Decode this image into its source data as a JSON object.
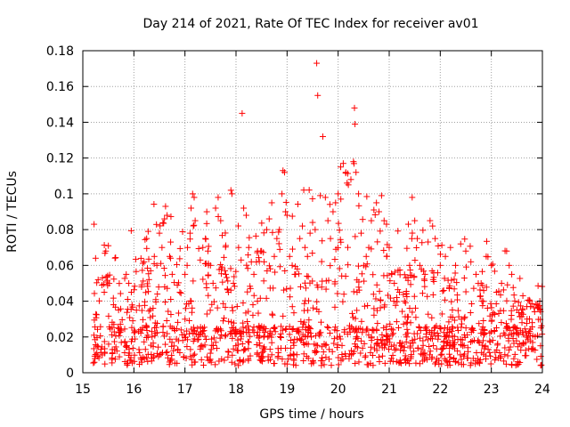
{
  "chart_data": {
    "type": "scatter",
    "title": "Day 214 of 2021, Rate Of TEC Index for receiver av01",
    "xlabel": "GPS time / hours",
    "ylabel": "ROTI / TECUs",
    "xlim": [
      15,
      24
    ],
    "ylim": [
      0,
      0.18
    ],
    "xticks": [
      15,
      16,
      17,
      18,
      19,
      20,
      21,
      22,
      23,
      24
    ],
    "xtick_labels": [
      "15",
      "16",
      "17",
      "18",
      "19",
      "20",
      "21",
      "22",
      "23",
      "24"
    ],
    "yticks": [
      0,
      0.02,
      0.04,
      0.06,
      0.08,
      0.1,
      0.12,
      0.14,
      0.16,
      0.18
    ],
    "ytick_labels": [
      "0",
      "0.02",
      "0.04",
      "0.06",
      "0.08",
      "0.1",
      "0.12",
      "0.14",
      "0.16",
      "0.18"
    ],
    "grid": true,
    "marker": "+",
    "color": "#ff0000",
    "series": [
      {
        "points": [
          [
            15.22,
            0.083
          ],
          [
            15.25,
            0.064
          ],
          [
            15.3,
            0.052
          ],
          [
            15.45,
            0.068
          ],
          [
            15.5,
            0.071
          ],
          [
            15.42,
            0.045
          ],
          [
            15.6,
            0.038
          ],
          [
            15.7,
            0.035
          ],
          [
            15.85,
            0.055
          ],
          [
            15.9,
            0.05
          ],
          [
            15.95,
            0.045
          ],
          [
            16.05,
            0.035
          ],
          [
            16.15,
            0.048
          ],
          [
            16.2,
            0.062
          ],
          [
            16.25,
            0.075
          ],
          [
            16.28,
            0.079
          ],
          [
            16.4,
            0.065
          ],
          [
            16.45,
            0.06
          ],
          [
            16.5,
            0.078
          ],
          [
            16.55,
            0.07
          ],
          [
            16.6,
            0.086
          ],
          [
            16.62,
            0.093
          ],
          [
            16.65,
            0.088
          ],
          [
            16.7,
            0.065
          ],
          [
            16.75,
            0.055
          ],
          [
            16.85,
            0.049
          ],
          [
            16.9,
            0.045
          ],
          [
            17.0,
            0.055
          ],
          [
            17.05,
            0.07
          ],
          [
            17.1,
            0.078
          ],
          [
            17.12,
            0.092
          ],
          [
            17.15,
            0.1
          ],
          [
            17.18,
            0.098
          ],
          [
            17.2,
            0.085
          ],
          [
            17.3,
            0.063
          ],
          [
            17.35,
            0.07
          ],
          [
            17.4,
            0.075
          ],
          [
            17.45,
            0.068
          ],
          [
            17.5,
            0.06
          ],
          [
            17.55,
            0.05
          ],
          [
            17.6,
            0.092
          ],
          [
            17.65,
            0.098
          ],
          [
            17.7,
            0.085
          ],
          [
            17.8,
            0.055
          ],
          [
            17.85,
            0.045
          ],
          [
            17.9,
            0.102
          ],
          [
            17.92,
            0.1
          ],
          [
            17.95,
            0.05
          ],
          [
            18.05,
            0.07
          ],
          [
            18.1,
            0.063
          ],
          [
            18.12,
            0.145
          ],
          [
            18.15,
            0.092
          ],
          [
            18.2,
            0.088
          ],
          [
            18.25,
            0.07
          ],
          [
            18.3,
            0.062
          ],
          [
            18.35,
            0.055
          ],
          [
            18.42,
            0.04
          ],
          [
            18.5,
            0.068
          ],
          [
            18.55,
            0.062
          ],
          [
            18.6,
            0.08
          ],
          [
            18.65,
            0.086
          ],
          [
            18.7,
            0.095
          ],
          [
            18.75,
            0.065
          ],
          [
            18.8,
            0.075
          ],
          [
            18.85,
            0.08
          ],
          [
            18.9,
            0.1
          ],
          [
            18.92,
            0.113
          ],
          [
            18.95,
            0.112
          ],
          [
            18.97,
            0.09
          ],
          [
            19.0,
            0.088
          ],
          [
            19.05,
            0.065
          ],
          [
            19.1,
            0.06
          ],
          [
            19.15,
            0.055
          ],
          [
            19.2,
            0.058
          ],
          [
            19.25,
            0.075
          ],
          [
            19.3,
            0.082
          ],
          [
            19.35,
            0.07
          ],
          [
            19.4,
            0.065
          ],
          [
            19.45,
            0.078
          ],
          [
            19.5,
            0.084
          ],
          [
            19.55,
            0.08
          ],
          [
            19.58,
            0.173
          ],
          [
            19.6,
            0.155
          ],
          [
            19.65,
            0.099
          ],
          [
            19.7,
            0.132
          ],
          [
            19.75,
            0.098
          ],
          [
            19.8,
            0.085
          ],
          [
            19.85,
            0.075
          ],
          [
            19.9,
            0.09
          ],
          [
            19.95,
            0.095
          ],
          [
            20.0,
            0.1
          ],
          [
            20.05,
            0.115
          ],
          [
            20.1,
            0.117
          ],
          [
            20.15,
            0.112
          ],
          [
            20.2,
            0.105
          ],
          [
            20.25,
            0.108
          ],
          [
            20.3,
            0.118
          ],
          [
            20.32,
            0.148
          ],
          [
            20.33,
            0.139
          ],
          [
            20.35,
            0.112
          ],
          [
            20.4,
            0.1
          ],
          [
            20.45,
            0.078
          ],
          [
            20.5,
            0.06
          ],
          [
            20.55,
            0.065
          ],
          [
            20.6,
            0.07
          ],
          [
            20.65,
            0.085
          ],
          [
            20.7,
            0.091
          ],
          [
            20.75,
            0.095
          ],
          [
            20.8,
            0.09
          ],
          [
            20.85,
            0.099
          ],
          [
            20.9,
            0.085
          ],
          [
            20.95,
            0.065
          ],
          [
            21.0,
            0.07
          ],
          [
            21.05,
            0.055
          ],
          [
            21.1,
            0.05
          ],
          [
            21.2,
            0.045
          ],
          [
            21.3,
            0.04
          ],
          [
            21.4,
            0.06
          ],
          [
            21.45,
            0.098
          ],
          [
            21.5,
            0.085
          ],
          [
            21.55,
            0.075
          ],
          [
            21.6,
            0.06
          ],
          [
            21.7,
            0.055
          ],
          [
            21.8,
            0.085
          ],
          [
            21.85,
            0.082
          ],
          [
            21.9,
            0.075
          ],
          [
            22.0,
            0.06
          ],
          [
            22.1,
            0.065
          ],
          [
            22.2,
            0.07
          ],
          [
            22.3,
            0.06
          ],
          [
            22.4,
            0.072
          ],
          [
            22.5,
            0.068
          ],
          [
            22.6,
            0.062
          ],
          [
            22.7,
            0.055
          ],
          [
            22.8,
            0.05
          ],
          [
            22.9,
            0.065
          ],
          [
            23.0,
            0.06
          ],
          [
            23.1,
            0.045
          ],
          [
            23.2,
            0.05
          ],
          [
            23.3,
            0.068
          ],
          [
            23.35,
            0.06
          ],
          [
            23.4,
            0.055
          ],
          [
            23.5,
            0.025
          ],
          [
            23.6,
            0.028
          ],
          [
            23.7,
            0.03
          ],
          [
            23.8,
            0.028
          ],
          [
            23.9,
            0.038
          ],
          [
            23.95,
            0.04
          ]
        ]
      }
    ]
  }
}
